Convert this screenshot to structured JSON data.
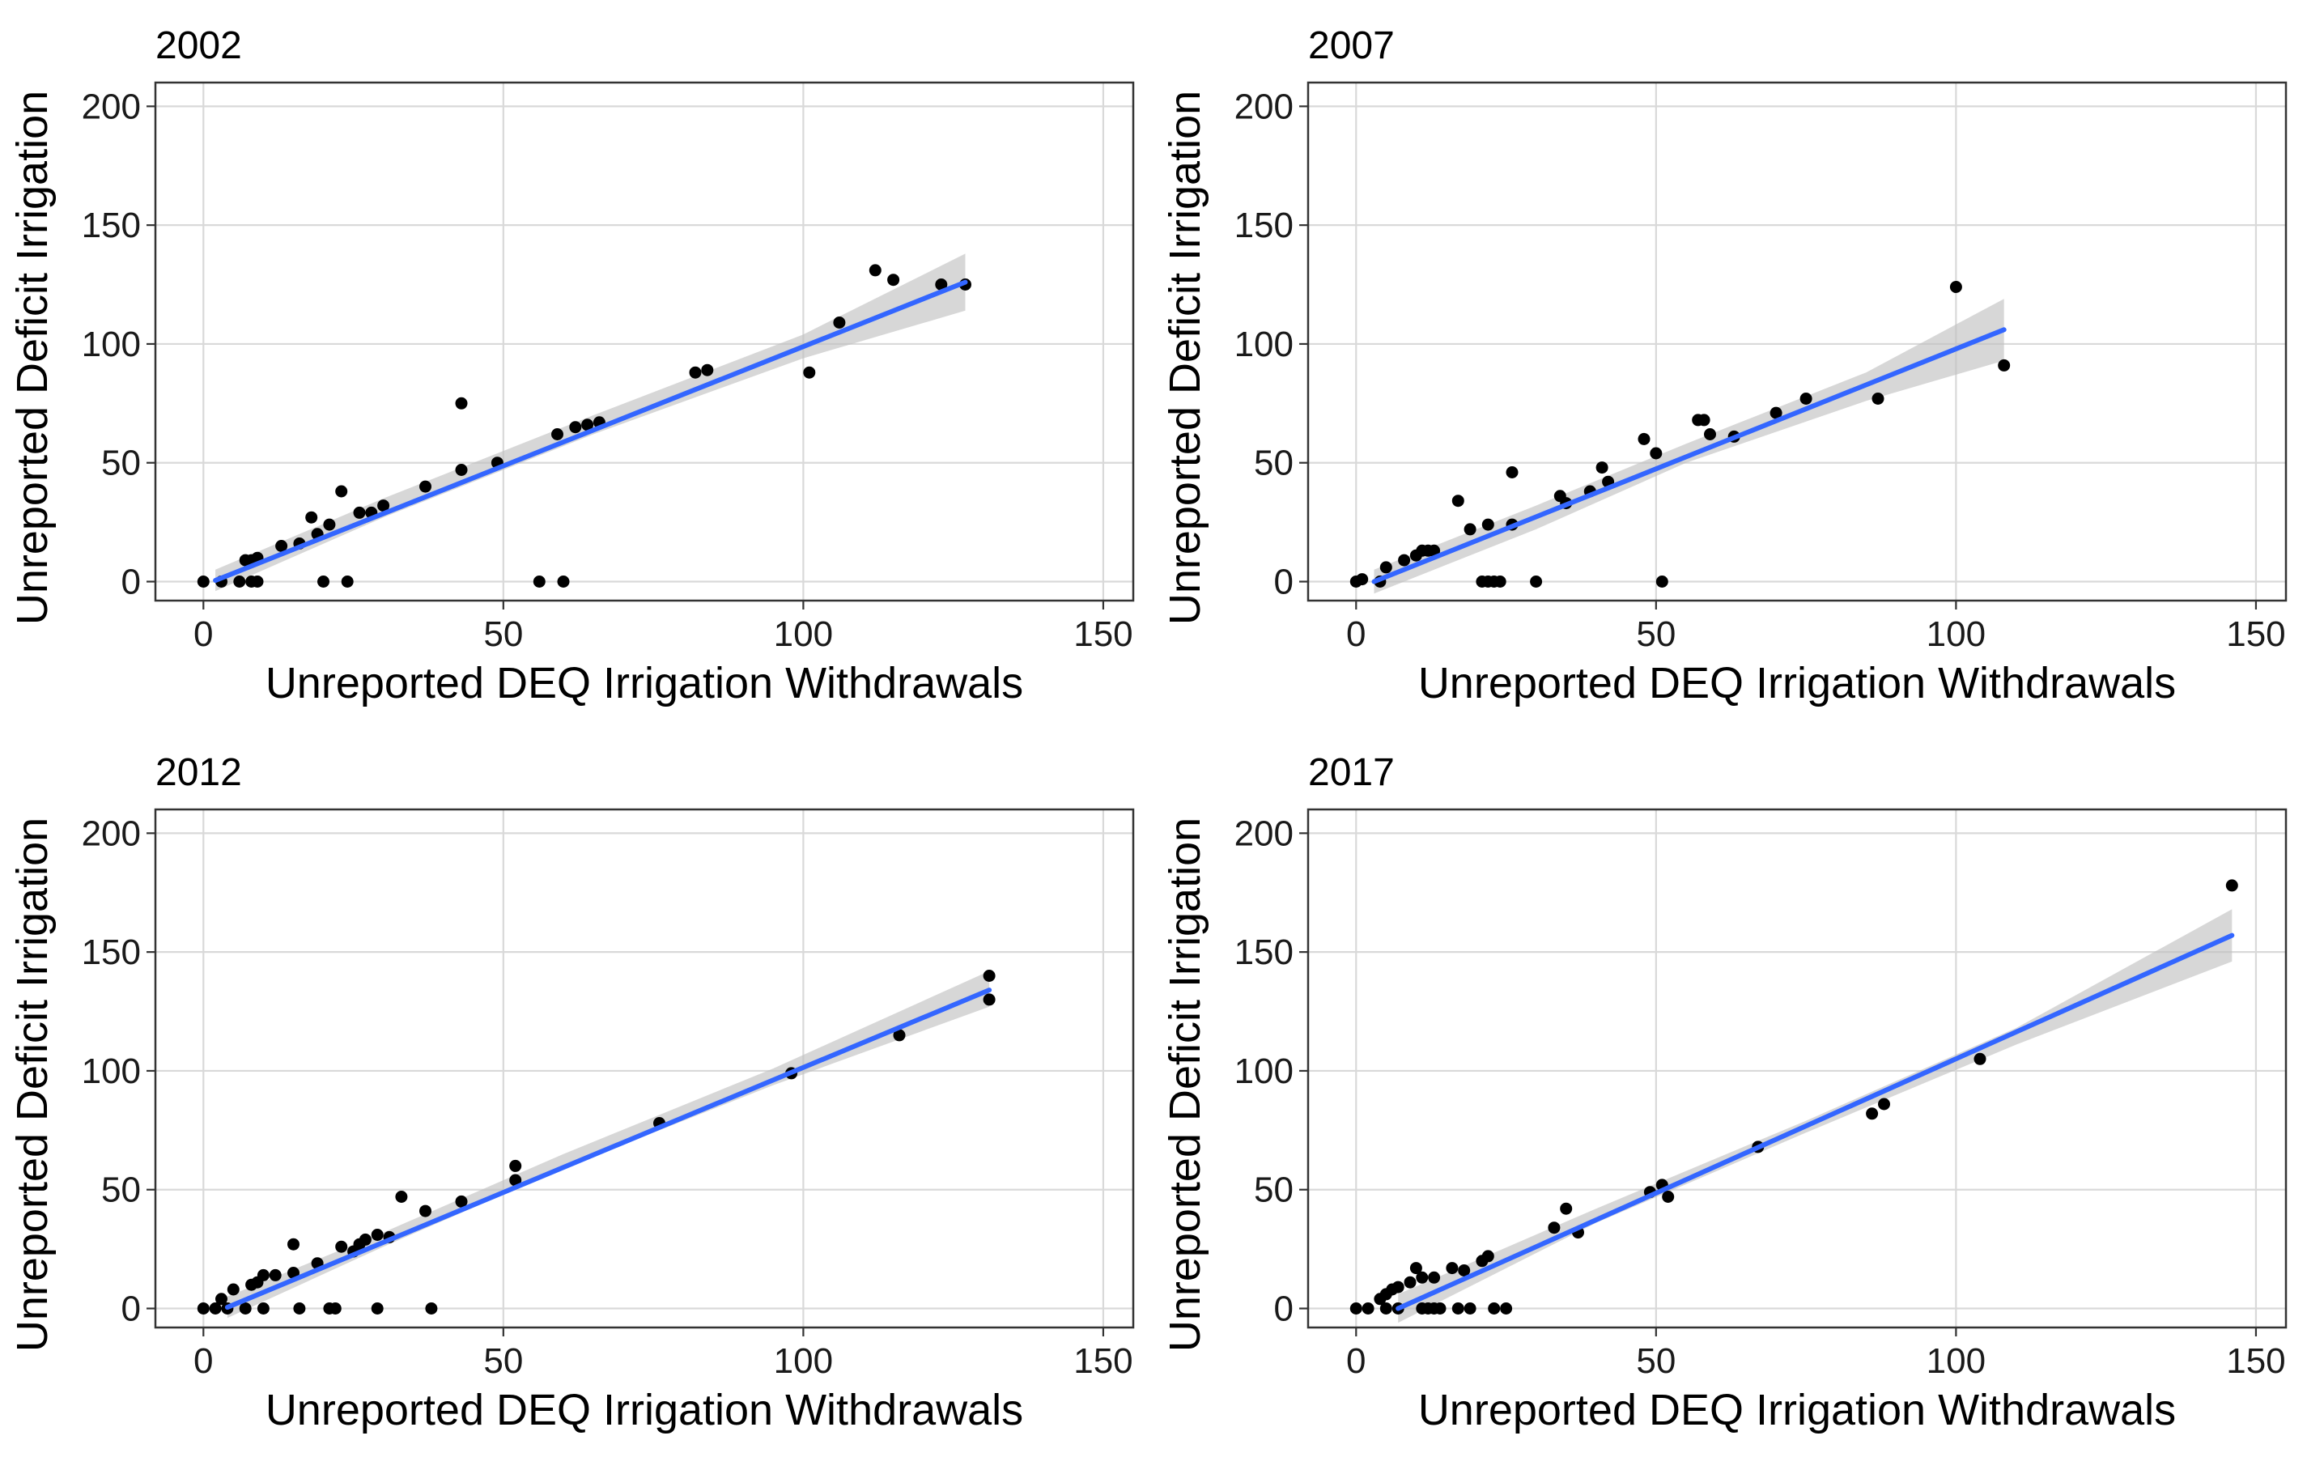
{
  "chart_data": [
    {
      "type": "scatter",
      "title": "2002",
      "xlabel": "Unreported DEQ Irrigation Withdrawals",
      "ylabel": "Unreported Deficit Irrigation",
      "xlim": [
        -8,
        155
      ],
      "ylim": [
        -8,
        210
      ],
      "x_ticks": [
        0,
        50,
        100,
        150
      ],
      "y_ticks": [
        0,
        50,
        100,
        150,
        200
      ],
      "x_tick_labels": [
        "0",
        "50",
        "100",
        "150"
      ],
      "y_tick_labels": [
        "0",
        "50",
        "100",
        "150",
        "200"
      ],
      "grid": true,
      "point_color": "#000000",
      "fit_color": "#3366FF",
      "band_color": "#BEBEBE",
      "fit": {
        "x": [
          2,
          127
        ],
        "y": [
          0.5,
          126
        ]
      },
      "band": {
        "x": [
          2,
          30,
          65,
          100,
          127
        ],
        "lower": [
          -4,
          27,
          62,
          94,
          114
        ],
        "upper": [
          5,
          35,
          70,
          104,
          138
        ]
      },
      "points": [
        [
          0,
          0
        ],
        [
          3,
          0
        ],
        [
          6,
          0
        ],
        [
          7,
          9
        ],
        [
          8,
          9
        ],
        [
          9,
          10
        ],
        [
          8,
          0
        ],
        [
          9,
          0
        ],
        [
          13,
          15
        ],
        [
          16,
          16
        ],
        [
          18,
          27
        ],
        [
          19,
          20
        ],
        [
          21,
          24
        ],
        [
          20,
          0
        ],
        [
          23,
          38
        ],
        [
          24,
          0
        ],
        [
          26,
          29
        ],
        [
          28,
          29
        ],
        [
          30,
          32
        ],
        [
          37,
          40
        ],
        [
          43,
          75
        ],
        [
          43,
          47
        ],
        [
          49,
          50
        ],
        [
          56,
          0
        ],
        [
          60,
          0
        ],
        [
          59,
          62
        ],
        [
          62,
          65
        ],
        [
          64,
          66
        ],
        [
          66,
          67
        ],
        [
          82,
          88
        ],
        [
          84,
          89
        ],
        [
          101,
          88
        ],
        [
          106,
          109
        ],
        [
          112,
          131
        ],
        [
          115,
          127
        ],
        [
          123,
          125
        ],
        [
          127,
          125
        ]
      ]
    },
    {
      "type": "scatter",
      "title": "2007",
      "xlabel": "Unreported DEQ Irrigation Withdrawals",
      "ylabel": "Unreported Deficit Irrigation",
      "xlim": [
        -8,
        155
      ],
      "ylim": [
        -8,
        210
      ],
      "x_ticks": [
        0,
        50,
        100,
        150
      ],
      "y_ticks": [
        0,
        50,
        100,
        150,
        200
      ],
      "x_tick_labels": [
        "0",
        "50",
        "100",
        "150"
      ],
      "y_tick_labels": [
        "0",
        "50",
        "100",
        "150",
        "200"
      ],
      "grid": true,
      "point_color": "#000000",
      "fit_color": "#3366FF",
      "band_color": "#BEBEBE",
      "fit": {
        "x": [
          3,
          108
        ],
        "y": [
          0,
          106
        ]
      },
      "band": {
        "x": [
          3,
          30,
          55,
          85,
          108
        ],
        "lower": [
          -5,
          22,
          50,
          76,
          93
        ],
        "upper": [
          5,
          32,
          58,
          88,
          119
        ]
      },
      "points": [
        [
          0,
          0
        ],
        [
          1,
          1
        ],
        [
          4,
          0
        ],
        [
          5,
          6
        ],
        [
          8,
          9
        ],
        [
          10,
          11
        ],
        [
          11,
          13
        ],
        [
          12,
          13
        ],
        [
          13,
          13
        ],
        [
          17,
          34
        ],
        [
          19,
          22
        ],
        [
          21,
          0
        ],
        [
          22,
          0
        ],
        [
          22,
          24
        ],
        [
          23,
          0
        ],
        [
          24,
          0
        ],
        [
          26,
          24
        ],
        [
          26,
          46
        ],
        [
          30,
          0
        ],
        [
          34,
          36
        ],
        [
          35,
          33
        ],
        [
          39,
          38
        ],
        [
          41,
          48
        ],
        [
          42,
          42
        ],
        [
          48,
          60
        ],
        [
          50,
          54
        ],
        [
          51,
          0
        ],
        [
          57,
          68
        ],
        [
          58,
          68
        ],
        [
          59,
          62
        ],
        [
          63,
          61
        ],
        [
          70,
          71
        ],
        [
          75,
          77
        ],
        [
          87,
          77
        ],
        [
          100,
          124
        ],
        [
          108,
          91
        ]
      ]
    },
    {
      "type": "scatter",
      "title": "2012",
      "xlabel": "Unreported DEQ Irrigation Withdrawals",
      "ylabel": "Unreported Deficit Irrigation",
      "xlim": [
        -8,
        155
      ],
      "ylim": [
        -8,
        210
      ],
      "x_ticks": [
        0,
        50,
        100,
        150
      ],
      "y_ticks": [
        0,
        50,
        100,
        150,
        200
      ],
      "x_tick_labels": [
        "0",
        "50",
        "100",
        "150"
      ],
      "y_tick_labels": [
        "0",
        "50",
        "100",
        "150",
        "200"
      ],
      "grid": true,
      "point_color": "#000000",
      "fit_color": "#3366FF",
      "band_color": "#BEBEBE",
      "fit": {
        "x": [
          4,
          131
        ],
        "y": [
          0.5,
          134
        ]
      },
      "band": {
        "x": [
          4,
          30,
          60,
          95,
          131
        ],
        "lower": [
          -4,
          26,
          59,
          94,
          127
        ],
        "upper": [
          5,
          32,
          65,
          101,
          142
        ]
      },
      "points": [
        [
          0,
          0
        ],
        [
          2,
          0
        ],
        [
          3,
          4
        ],
        [
          4,
          0
        ],
        [
          5,
          8
        ],
        [
          7,
          0
        ],
        [
          8,
          10
        ],
        [
          9,
          11
        ],
        [
          10,
          0
        ],
        [
          10,
          14
        ],
        [
          12,
          14
        ],
        [
          15,
          15
        ],
        [
          15,
          27
        ],
        [
          16,
          0
        ],
        [
          19,
          19
        ],
        [
          21,
          0
        ],
        [
          22,
          0
        ],
        [
          23,
          26
        ],
        [
          25,
          24
        ],
        [
          26,
          27
        ],
        [
          27,
          29
        ],
        [
          29,
          31
        ],
        [
          29,
          0
        ],
        [
          31,
          30
        ],
        [
          33,
          47
        ],
        [
          37,
          41
        ],
        [
          38,
          0
        ],
        [
          43,
          45
        ],
        [
          52,
          54
        ],
        [
          52,
          60
        ],
        [
          76,
          78
        ],
        [
          98,
          99
        ],
        [
          116,
          115
        ],
        [
          131,
          140
        ],
        [
          131,
          130
        ]
      ]
    },
    {
      "type": "scatter",
      "title": "2017",
      "xlabel": "Unreported DEQ Irrigation Withdrawals",
      "ylabel": "Unreported Deficit Irrigation",
      "xlim": [
        -8,
        155
      ],
      "ylim": [
        -8,
        210
      ],
      "x_ticks": [
        0,
        50,
        100,
        150
      ],
      "y_ticks": [
        0,
        50,
        100,
        150,
        200
      ],
      "x_tick_labels": [
        "0",
        "50",
        "100",
        "150"
      ],
      "y_tick_labels": [
        "0",
        "50",
        "100",
        "150",
        "200"
      ],
      "grid": true,
      "point_color": "#000000",
      "fit_color": "#3366FF",
      "band_color": "#BEBEBE",
      "fit": {
        "x": [
          7,
          146
        ],
        "y": [
          0,
          157
        ]
      },
      "band": {
        "x": [
          7,
          40,
          75,
          110,
          146
        ],
        "lower": [
          -6,
          36,
          74,
          111,
          146
        ],
        "upper": [
          6,
          42,
          79,
          118,
          168
        ]
      },
      "points": [
        [
          0,
          0
        ],
        [
          2,
          0
        ],
        [
          4,
          4
        ],
        [
          5,
          0
        ],
        [
          5,
          6
        ],
        [
          6,
          8
        ],
        [
          7,
          0
        ],
        [
          7,
          9
        ],
        [
          9,
          11
        ],
        [
          10,
          17
        ],
        [
          11,
          13
        ],
        [
          11,
          0
        ],
        [
          12,
          0
        ],
        [
          13,
          13
        ],
        [
          13,
          0
        ],
        [
          14,
          0
        ],
        [
          16,
          17
        ],
        [
          17,
          0
        ],
        [
          18,
          16
        ],
        [
          19,
          0
        ],
        [
          21,
          20
        ],
        [
          22,
          22
        ],
        [
          23,
          0
        ],
        [
          25,
          0
        ],
        [
          33,
          34
        ],
        [
          35,
          42
        ],
        [
          37,
          32
        ],
        [
          49,
          49
        ],
        [
          51,
          52
        ],
        [
          52,
          47
        ],
        [
          67,
          68
        ],
        [
          86,
          82
        ],
        [
          88,
          86
        ],
        [
          104,
          105
        ],
        [
          146,
          178
        ]
      ]
    }
  ]
}
